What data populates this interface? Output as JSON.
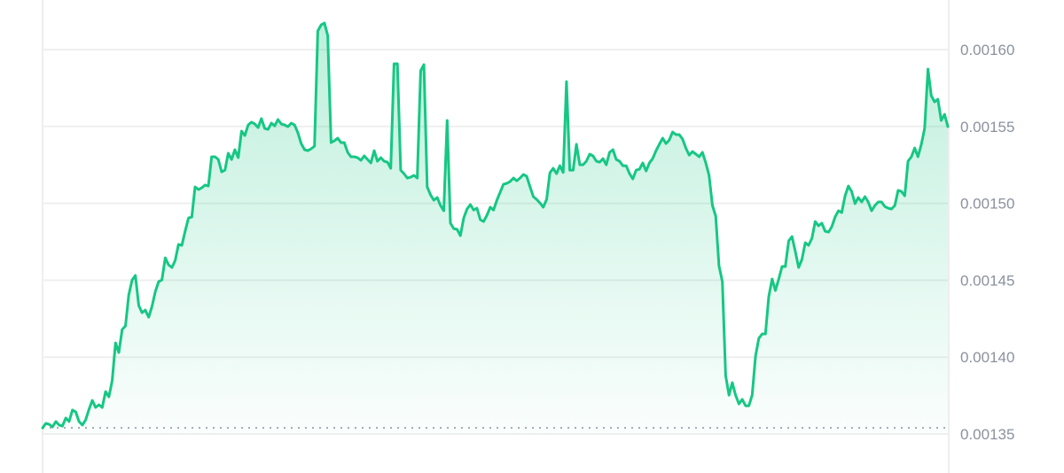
{
  "chart_data": {
    "type": "area",
    "title": "",
    "xlabel": "",
    "ylabel": "",
    "ylim": [
      0.00135,
      0.00162
    ],
    "yticks": [
      "0.00160",
      "0.00155",
      "0.00150",
      "0.00145",
      "0.00140",
      "0.00135"
    ],
    "ytick_values": [
      0.0016,
      0.00155,
      0.0015,
      0.00145,
      0.0014,
      0.00135
    ],
    "grid": true,
    "baseline_value": 0.001354,
    "line_color": "#16c784",
    "fill_color": "#16c784",
    "values": [
      0.001354,
      0.0013569,
      0.0013563,
      0.0013546,
      0.0013581,
      0.0013558,
      0.0013552,
      0.0013604,
      0.0013581,
      0.0013656,
      0.0013644,
      0.0013581,
      0.0013558,
      0.0013592,
      0.0013661,
      0.0013719,
      0.0013673,
      0.001369,
      0.0013673,
      0.0013776,
      0.0013742,
      0.0013846,
      0.0014093,
      0.001403,
      0.001418,
      0.0014203,
      0.0014404,
      0.0014502,
      0.0014531,
      0.0014335,
      0.0014289,
      0.0014306,
      0.001426,
      0.0014329,
      0.0014427,
      0.0014491,
      0.0014502,
      0.0014646,
      0.00146,
      0.0014583,
      0.0014629,
      0.0014733,
      0.0014727,
      0.0014819,
      0.0014905,
      0.0014911,
      0.0015107,
      0.001509,
      0.0015101,
      0.0015119,
      0.0015113,
      0.0015303,
      0.0015303,
      0.0015286,
      0.0015205,
      0.0015216,
      0.0015326,
      0.0015286,
      0.0015349,
      0.0015297,
      0.001547,
      0.0015441,
      0.001551,
      0.0015528,
      0.0015516,
      0.0015493,
      0.0015551,
      0.0015487,
      0.0015481,
      0.0015522,
      0.0015504,
      0.0015545,
      0.0015516,
      0.001551,
      0.0015499,
      0.0015522,
      0.001551,
      0.0015458,
      0.0015389,
      0.0015349,
      0.0015343,
      0.0015355,
      0.0015372,
      0.0016121,
      0.0016161,
      0.0016173,
      0.0016092,
      0.0015395,
      0.0015407,
      0.0015424,
      0.0015395,
      0.0015395,
      0.0015332,
      0.0015303,
      0.0015303,
      0.0015297,
      0.001528,
      0.0015309,
      0.0015286,
      0.0015263,
      0.0015343,
      0.0015274,
      0.0015297,
      0.0015274,
      0.0015268,
      0.0015228,
      0.0015908,
      0.0015908,
      0.0015216,
      0.0015193,
      0.0015165,
      0.001517,
      0.0015182,
      0.0015165,
      0.0015862,
      0.0015902,
      0.0015107,
      0.0015055,
      0.0015021,
      0.0015038,
      0.0014986,
      0.0014952,
      0.0015539,
      0.0014871,
      0.0014836,
      0.0014831,
      0.001479,
      0.0014905,
      0.0014963,
      0.0014992,
      0.0014957,
      0.0014969,
      0.0014894,
      0.0014882,
      0.0014923,
      0.0014975,
      0.0014957,
      0.0015021,
      0.0015072,
      0.0015124,
      0.001513,
      0.0015142,
      0.0015165,
      0.0015147,
      0.0015165,
      0.0015188,
      0.0015176,
      0.0015107,
      0.0015044,
      0.0015026,
      0.0015003,
      0.0014975,
      0.0015026,
      0.0015199,
      0.0015228,
      0.0015193,
      0.0015245,
      0.0015201,
      0.0015792,
      0.0015216,
      0.0015216,
      0.0015384,
      0.0015251,
      0.0015251,
      0.0015274,
      0.001532,
      0.0015309,
      0.0015274,
      0.0015268,
      0.0015291,
      0.0015251,
      0.0015332,
      0.0015349,
      0.0015286,
      0.0015274,
      0.0015245,
      0.0015245,
      0.0015193,
      0.0015159,
      0.0015216,
      0.0015222,
      0.0015263,
      0.0015211,
      0.0015263,
      0.0015291,
      0.0015343,
      0.0015384,
      0.0015424,
      0.0015389,
      0.0015412,
      0.0015464,
      0.0015447,
      0.0015447,
      0.0015418,
      0.001536,
      0.0015314,
      0.0015337,
      0.001532,
      0.0015303,
      0.0015332,
      0.0015263,
      0.0015182,
      0.0014986,
      0.0014917,
      0.0014594,
      0.0014491,
      0.001388,
      0.0013753,
      0.0013834,
      0.0013753,
      0.0013696,
      0.0013725,
      0.0013684,
      0.0013684,
      0.0013753,
      0.0014007,
      0.0014122,
      0.0014151,
      0.0014151,
      0.0014393,
      0.0014508,
      0.0014433,
      0.0014508,
      0.0014589,
      0.0014589,
      0.0014756,
      0.0014784,
      0.0014687,
      0.0014583,
      0.0014635,
      0.0014744,
      0.0014727,
      0.0014773,
      0.0014882,
      0.0014854,
      0.0014871,
      0.0014819,
      0.0014813,
      0.0014848,
      0.0014911,
      0.0014952,
      0.001494,
      0.0015049,
      0.0015113,
      0.0015078,
      0.0014998,
      0.0015038,
      0.0015009,
      0.0015044,
      0.0015009,
      0.0014952,
      0.0014986,
      0.0015009,
      0.0015009,
      0.001498,
      0.0014969,
      0.0014963,
      0.0014986,
      0.0015084,
      0.0015078,
      0.0015049,
      0.0015274,
      0.0015303,
      0.001536,
      0.0015303,
      0.0015384,
      0.0015487,
      0.0015873,
      0.00157,
      0.001566,
      0.0015677,
      0.0015539,
      0.0015579,
      0.0015499
    ]
  }
}
